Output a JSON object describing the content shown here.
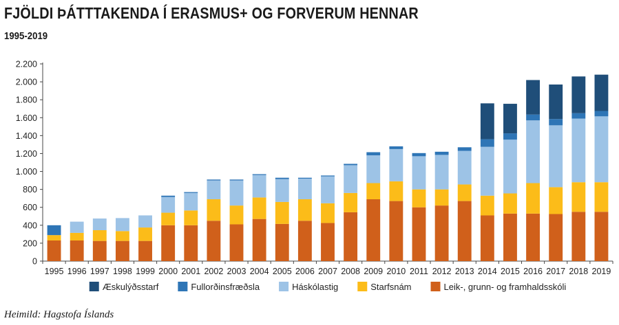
{
  "title": "FJÖLDI ÞÁTTTAKENDA Í ERASMUS+ OG FORVERUM HENNAR",
  "subtitle": "1995-2019",
  "source": "Heimild: Hagstofa Íslands",
  "chart_data": {
    "type": "bar",
    "stacked": true,
    "title": "FJÖLDI ÞÁTTTAKENDA Í ERASMUS+ OG FORVERUM HENNAR",
    "subtitle": "1995-2019",
    "xlabel": "",
    "ylabel": "",
    "ylim": [
      0,
      2200
    ],
    "yticks": [
      0,
      200,
      400,
      600,
      800,
      1000,
      1200,
      1400,
      1600,
      1800,
      2000,
      2200
    ],
    "ytick_labels": [
      "0",
      "200",
      "400",
      "600",
      "800",
      "1.000",
      "1.200",
      "1.400",
      "1.600",
      "1.800",
      "2.000",
      "2.200"
    ],
    "grid": false,
    "legend_position": "bottom",
    "categories": [
      "1995",
      "1996",
      "1997",
      "1998",
      "1999",
      "2000",
      "2001",
      "2002",
      "2003",
      "2004",
      "2005",
      "2006",
      "2007",
      "2008",
      "2009",
      "2010",
      "2011",
      "2012",
      "2013",
      "2014",
      "2015",
      "2016",
      "2017",
      "2018",
      "2019"
    ],
    "series": [
      {
        "name": "Leik-, grunn- og framhaldsskóli",
        "color": "#d0601b",
        "values": [
          230,
          230,
          225,
          225,
          225,
          400,
          400,
          450,
          410,
          470,
          415,
          450,
          425,
          545,
          690,
          670,
          600,
          620,
          670,
          510,
          530,
          530,
          525,
          550,
          550
        ]
      },
      {
        "name": "Starfsnám",
        "color": "#fcbc19",
        "values": [
          60,
          85,
          120,
          110,
          150,
          140,
          165,
          240,
          210,
          240,
          245,
          240,
          220,
          215,
          180,
          220,
          200,
          180,
          185,
          220,
          225,
          340,
          300,
          330,
          330
        ]
      },
      {
        "name": "Háskólastig",
        "color": "#9dc3e6",
        "values": [
          0,
          125,
          130,
          145,
          135,
          175,
          195,
          210,
          280,
          250,
          255,
          230,
          300,
          310,
          310,
          360,
          370,
          385,
          375,
          545,
          600,
          700,
          690,
          710,
          735
        ]
      },
      {
        "name": "Fullorðinsfræðsla",
        "color": "#2e75b6",
        "values": [
          110,
          0,
          0,
          0,
          0,
          15,
          10,
          10,
          10,
          10,
          15,
          10,
          10,
          15,
          35,
          30,
          35,
          35,
          40,
          85,
          70,
          65,
          70,
          60,
          60
        ]
      },
      {
        "name": "Æskulýðsstarf",
        "color": "#1f4e79",
        "values": [
          0,
          0,
          0,
          0,
          0,
          0,
          0,
          0,
          0,
          0,
          0,
          0,
          0,
          0,
          0,
          0,
          0,
          0,
          0,
          400,
          330,
          385,
          385,
          410,
          405
        ]
      }
    ],
    "legend_order": [
      "Æskulýðsstarf",
      "Fullorðinsfræðsla",
      "Háskólastig",
      "Starfsnám",
      "Leik-, grunn- og framhaldsskóli"
    ]
  }
}
